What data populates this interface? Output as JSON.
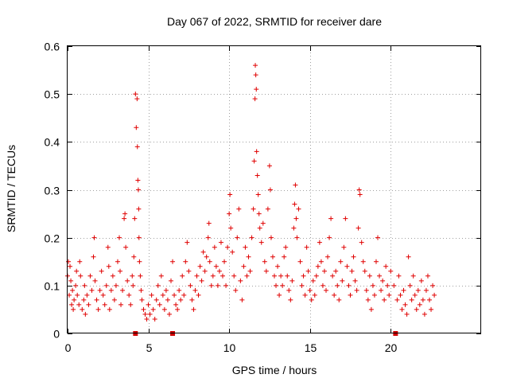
{
  "chart_data": {
    "type": "scatter",
    "title": "Day 067 of 2022, SRMTID for receiver dare",
    "xlabel": "GPS time / hours",
    "ylabel": "SRMTID / TECUs",
    "xlim": [
      0,
      25.6
    ],
    "ylim": [
      0,
      0.6
    ],
    "xticks": [
      0,
      5,
      10,
      15,
      20
    ],
    "xtick_labels": [
      "0",
      "5",
      "10",
      "15",
      "20"
    ],
    "yticks": [
      0,
      0.1,
      0.2,
      0.3,
      0.4,
      0.5,
      0.6
    ],
    "ytick_labels": [
      "0",
      "0.1",
      "0.2",
      "0.3",
      "0.4",
      "0.5",
      "0.6"
    ],
    "grid": true,
    "series_color": "#e00000",
    "marker": "plus",
    "baseline_markers_x": [
      4.2,
      6.5,
      20.3
    ],
    "points": [
      [
        0.0,
        0.12
      ],
      [
        0.05,
        0.15
      ],
      [
        0.1,
        0.08
      ],
      [
        0.15,
        0.14
      ],
      [
        0.2,
        0.11
      ],
      [
        0.25,
        0.06
      ],
      [
        0.3,
        0.09
      ],
      [
        0.35,
        0.05
      ],
      [
        0.4,
        0.07
      ],
      [
        0.5,
        0.1
      ],
      [
        0.55,
        0.13
      ],
      [
        0.6,
        0.08
      ],
      [
        0.7,
        0.06
      ],
      [
        0.75,
        0.15
      ],
      [
        0.8,
        0.12
      ],
      [
        0.9,
        0.05
      ],
      [
        1.0,
        0.07
      ],
      [
        1.05,
        0.1
      ],
      [
        1.1,
        0.04
      ],
      [
        1.2,
        0.08
      ],
      [
        1.3,
        0.06
      ],
      [
        1.4,
        0.12
      ],
      [
        1.5,
        0.09
      ],
      [
        1.6,
        0.16
      ],
      [
        1.65,
        0.2
      ],
      [
        1.7,
        0.11
      ],
      [
        1.8,
        0.07
      ],
      [
        1.9,
        0.05
      ],
      [
        2.0,
        0.09
      ],
      [
        2.1,
        0.13
      ],
      [
        2.2,
        0.08
      ],
      [
        2.3,
        0.06
      ],
      [
        2.4,
        0.1
      ],
      [
        2.5,
        0.18
      ],
      [
        2.55,
        0.14
      ],
      [
        2.6,
        0.05
      ],
      [
        2.7,
        0.09
      ],
      [
        2.8,
        0.12
      ],
      [
        2.9,
        0.07
      ],
      [
        3.0,
        0.1
      ],
      [
        3.1,
        0.15
      ],
      [
        3.2,
        0.2
      ],
      [
        3.25,
        0.13
      ],
      [
        3.3,
        0.06
      ],
      [
        3.4,
        0.09
      ],
      [
        3.5,
        0.24
      ],
      [
        3.55,
        0.25
      ],
      [
        3.6,
        0.18
      ],
      [
        3.7,
        0.11
      ],
      [
        3.8,
        0.08
      ],
      [
        3.9,
        0.06
      ],
      [
        4.0,
        0.12
      ],
      [
        4.05,
        0.1
      ],
      [
        4.1,
        0.16
      ],
      [
        4.15,
        0.24
      ],
      [
        4.2,
        0.5
      ],
      [
        4.25,
        0.43
      ],
      [
        4.3,
        0.49
      ],
      [
        4.32,
        0.39
      ],
      [
        4.35,
        0.32
      ],
      [
        4.38,
        0.3
      ],
      [
        4.4,
        0.26
      ],
      [
        4.42,
        0.2
      ],
      [
        4.45,
        0.15
      ],
      [
        4.5,
        0.12
      ],
      [
        4.55,
        0.09
      ],
      [
        4.6,
        0.07
      ],
      [
        4.7,
        0.05
      ],
      [
        4.8,
        0.04
      ],
      [
        4.9,
        0.03
      ],
      [
        5.0,
        0.06
      ],
      [
        5.1,
        0.04
      ],
      [
        5.2,
        0.08
      ],
      [
        5.3,
        0.05
      ],
      [
        5.4,
        0.03
      ],
      [
        5.5,
        0.07
      ],
      [
        5.6,
        0.1
      ],
      [
        5.7,
        0.06
      ],
      [
        5.8,
        0.12
      ],
      [
        5.9,
        0.08
      ],
      [
        6.0,
        0.05
      ],
      [
        6.1,
        0.09
      ],
      [
        6.2,
        0.07
      ],
      [
        6.3,
        0.04
      ],
      [
        6.4,
        0.11
      ],
      [
        6.5,
        0.15
      ],
      [
        6.6,
        0.08
      ],
      [
        6.7,
        0.06
      ],
      [
        6.8,
        0.05
      ],
      [
        6.9,
        0.09
      ],
      [
        7.0,
        0.07
      ],
      [
        7.1,
        0.12
      ],
      [
        7.2,
        0.08
      ],
      [
        7.3,
        0.15
      ],
      [
        7.4,
        0.19
      ],
      [
        7.5,
        0.13
      ],
      [
        7.6,
        0.1
      ],
      [
        7.7,
        0.07
      ],
      [
        7.8,
        0.05
      ],
      [
        7.9,
        0.09
      ],
      [
        8.0,
        0.12
      ],
      [
        8.1,
        0.08
      ],
      [
        8.2,
        0.14
      ],
      [
        8.3,
        0.11
      ],
      [
        8.4,
        0.17
      ],
      [
        8.5,
        0.13
      ],
      [
        8.6,
        0.16
      ],
      [
        8.7,
        0.2
      ],
      [
        8.75,
        0.23
      ],
      [
        8.8,
        0.15
      ],
      [
        8.9,
        0.1
      ],
      [
        9.0,
        0.12
      ],
      [
        9.1,
        0.18
      ],
      [
        9.2,
        0.14
      ],
      [
        9.3,
        0.1
      ],
      [
        9.4,
        0.13
      ],
      [
        9.5,
        0.19
      ],
      [
        9.6,
        0.12
      ],
      [
        9.7,
        0.15
      ],
      [
        9.8,
        0.1
      ],
      [
        9.9,
        0.18
      ],
      [
        10.0,
        0.25
      ],
      [
        10.05,
        0.29
      ],
      [
        10.1,
        0.22
      ],
      [
        10.2,
        0.17
      ],
      [
        10.3,
        0.12
      ],
      [
        10.4,
        0.09
      ],
      [
        10.5,
        0.2
      ],
      [
        10.6,
        0.26
      ],
      [
        10.7,
        0.11
      ],
      [
        10.8,
        0.07
      ],
      [
        10.9,
        0.14
      ],
      [
        11.0,
        0.18
      ],
      [
        11.1,
        0.12
      ],
      [
        11.2,
        0.16
      ],
      [
        11.3,
        0.13
      ],
      [
        11.4,
        0.2
      ],
      [
        11.5,
        0.26
      ],
      [
        11.55,
        0.36
      ],
      [
        11.6,
        0.49
      ],
      [
        11.62,
        0.56
      ],
      [
        11.65,
        0.54
      ],
      [
        11.68,
        0.51
      ],
      [
        11.7,
        0.38
      ],
      [
        11.75,
        0.33
      ],
      [
        11.8,
        0.29
      ],
      [
        11.85,
        0.25
      ],
      [
        11.9,
        0.22
      ],
      [
        12.0,
        0.19
      ],
      [
        12.1,
        0.23
      ],
      [
        12.2,
        0.15
      ],
      [
        12.3,
        0.13
      ],
      [
        12.4,
        0.26
      ],
      [
        12.5,
        0.35
      ],
      [
        12.55,
        0.3
      ],
      [
        12.6,
        0.2
      ],
      [
        12.7,
        0.16
      ],
      [
        12.8,
        0.12
      ],
      [
        12.9,
        0.1
      ],
      [
        13.0,
        0.14
      ],
      [
        13.1,
        0.08
      ],
      [
        13.2,
        0.12
      ],
      [
        13.3,
        0.1
      ],
      [
        13.4,
        0.16
      ],
      [
        13.5,
        0.18
      ],
      [
        13.6,
        0.12
      ],
      [
        13.7,
        0.09
      ],
      [
        13.8,
        0.07
      ],
      [
        13.9,
        0.11
      ],
      [
        14.0,
        0.22
      ],
      [
        14.05,
        0.27
      ],
      [
        14.1,
        0.31
      ],
      [
        14.15,
        0.24
      ],
      [
        14.2,
        0.2
      ],
      [
        14.3,
        0.26
      ],
      [
        14.4,
        0.15
      ],
      [
        14.5,
        0.1
      ],
      [
        14.6,
        0.12
      ],
      [
        14.7,
        0.08
      ],
      [
        14.8,
        0.18
      ],
      [
        14.9,
        0.13
      ],
      [
        15.0,
        0.09
      ],
      [
        15.1,
        0.07
      ],
      [
        15.2,
        0.11
      ],
      [
        15.3,
        0.08
      ],
      [
        15.4,
        0.12
      ],
      [
        15.5,
        0.14
      ],
      [
        15.6,
        0.19
      ],
      [
        15.7,
        0.15
      ],
      [
        15.8,
        0.1
      ],
      [
        15.9,
        0.13
      ],
      [
        16.0,
        0.09
      ],
      [
        16.1,
        0.16
      ],
      [
        16.2,
        0.2
      ],
      [
        16.3,
        0.24
      ],
      [
        16.4,
        0.12
      ],
      [
        16.5,
        0.08
      ],
      [
        16.6,
        0.13
      ],
      [
        16.7,
        0.1
      ],
      [
        16.8,
        0.07
      ],
      [
        16.9,
        0.15
      ],
      [
        17.0,
        0.11
      ],
      [
        17.1,
        0.18
      ],
      [
        17.2,
        0.24
      ],
      [
        17.3,
        0.14
      ],
      [
        17.4,
        0.1
      ],
      [
        17.5,
        0.08
      ],
      [
        17.6,
        0.13
      ],
      [
        17.7,
        0.16
      ],
      [
        17.8,
        0.11
      ],
      [
        17.9,
        0.09
      ],
      [
        18.0,
        0.22
      ],
      [
        18.05,
        0.3
      ],
      [
        18.1,
        0.29
      ],
      [
        18.2,
        0.19
      ],
      [
        18.3,
        0.15
      ],
      [
        18.4,
        0.13
      ],
      [
        18.5,
        0.09
      ],
      [
        18.6,
        0.07
      ],
      [
        18.7,
        0.12
      ],
      [
        18.8,
        0.05
      ],
      [
        18.9,
        0.1
      ],
      [
        19.0,
        0.08
      ],
      [
        19.1,
        0.15
      ],
      [
        19.2,
        0.2
      ],
      [
        19.3,
        0.12
      ],
      [
        19.4,
        0.09
      ],
      [
        19.5,
        0.11
      ],
      [
        19.6,
        0.07
      ],
      [
        19.7,
        0.14
      ],
      [
        19.8,
        0.1
      ],
      [
        19.9,
        0.08
      ],
      [
        20.0,
        0.13
      ],
      [
        20.2,
        0.1
      ],
      [
        20.4,
        0.07
      ],
      [
        20.5,
        0.12
      ],
      [
        20.6,
        0.08
      ],
      [
        20.7,
        0.05
      ],
      [
        20.8,
        0.09
      ],
      [
        20.9,
        0.06
      ],
      [
        21.0,
        0.04
      ],
      [
        21.1,
        0.16
      ],
      [
        21.2,
        0.1
      ],
      [
        21.3,
        0.07
      ],
      [
        21.4,
        0.12
      ],
      [
        21.5,
        0.08
      ],
      [
        21.6,
        0.05
      ],
      [
        21.7,
        0.09
      ],
      [
        21.8,
        0.06
      ],
      [
        21.9,
        0.11
      ],
      [
        22.0,
        0.07
      ],
      [
        22.1,
        0.04
      ],
      [
        22.2,
        0.09
      ],
      [
        22.3,
        0.12
      ],
      [
        22.4,
        0.07
      ],
      [
        22.5,
        0.05
      ],
      [
        22.6,
        0.1
      ],
      [
        22.7,
        0.08
      ]
    ]
  }
}
